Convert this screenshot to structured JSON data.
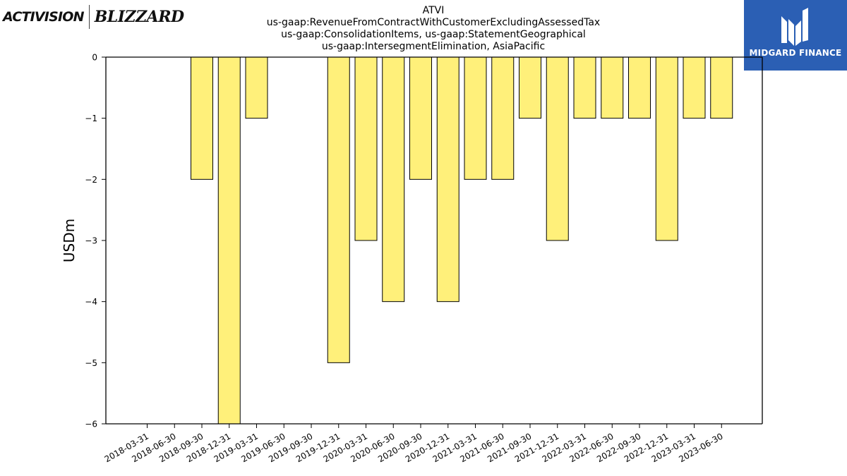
{
  "logos": {
    "left_brand_1": "ACTIVISION",
    "left_brand_2": "BLIZZARD",
    "right_brand": "MIDGARD FINANCE",
    "right_brand_bg": "#2b5fb4"
  },
  "chart_data": {
    "type": "bar",
    "title": [
      "ATVI",
      "us-gaap:RevenueFromContractWithCustomerExcludingAssessedTax",
      "us-gaap:ConsolidationItems, us-gaap:StatementGeographical",
      "us-gaap:IntersegmentElimination, AsiaPacific"
    ],
    "xlabel": "",
    "ylabel": "USDm",
    "ylim": [
      -6,
      0
    ],
    "yticks": [
      0,
      -1,
      -2,
      -3,
      -4,
      -5,
      -6
    ],
    "ytick_labels": [
      "0",
      "−1",
      "−2",
      "−3",
      "−4",
      "−5",
      "−6"
    ],
    "categories": [
      "2018-03-31",
      "2018-06-30",
      "2018-09-30",
      "2018-12-31",
      "2019-03-31",
      "2019-06-30",
      "2019-09-30",
      "2019-12-31",
      "2020-03-31",
      "2020-06-30",
      "2020-09-30",
      "2020-12-31",
      "2021-03-31",
      "2021-06-30",
      "2021-09-30",
      "2021-12-31",
      "2022-03-31",
      "2022-06-30",
      "2022-09-30",
      "2022-12-31",
      "2023-03-31",
      "2023-06-30"
    ],
    "values": [
      0,
      0,
      -2,
      -6,
      -1,
      0,
      0,
      -5,
      -3,
      -4,
      -2,
      -4,
      -2,
      -2,
      -1,
      -3,
      -1,
      -1,
      -1,
      -3,
      -1,
      -1
    ],
    "bar_color": "#fff07a",
    "bar_edge_color": "#000000",
    "grid": false
  }
}
